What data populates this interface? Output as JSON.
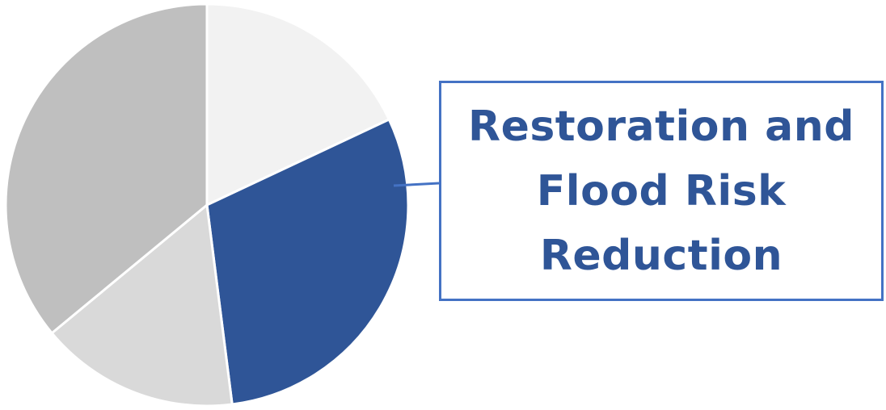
{
  "chart_data": {
    "type": "pie",
    "title": "",
    "start_angle_deg": 0,
    "direction": "clockwise",
    "slices": [
      {
        "label": "",
        "value": 18,
        "color": "#f2f2f2"
      },
      {
        "label": "Restoration and Flood Risk Reduction",
        "value": 30,
        "color": "#2f5597",
        "callout": true
      },
      {
        "label": "",
        "value": 16,
        "color": "#d9d9d9"
      },
      {
        "label": "",
        "value": 36,
        "color": "#bfbfbf"
      }
    ],
    "slice_border_color": "#ffffff",
    "callout": {
      "lines": [
        "Restoration and",
        "Flood Risk",
        "Reduction"
      ],
      "text_color": "#2f5597",
      "border_color": "#4472c4"
    }
  }
}
